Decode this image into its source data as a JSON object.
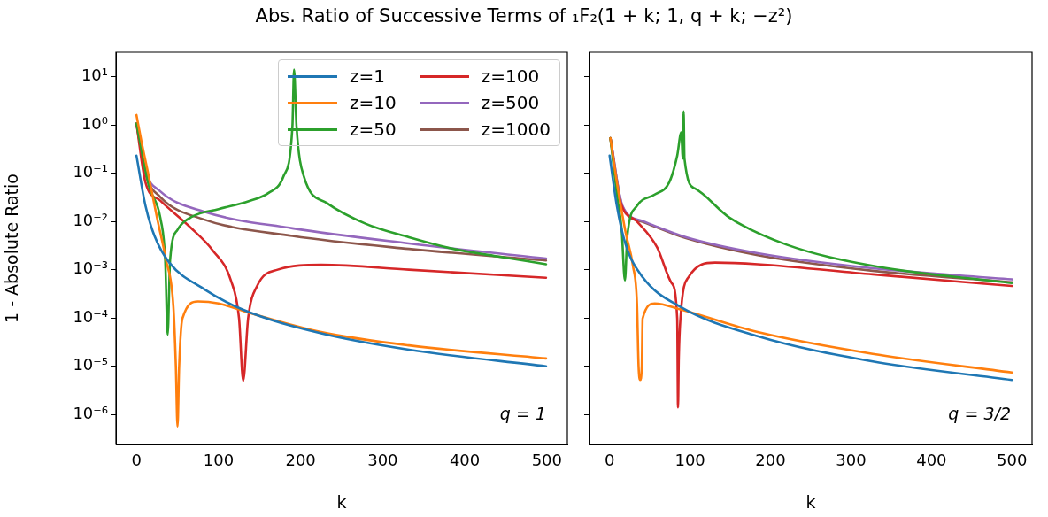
{
  "chart_data": [
    {
      "type": "line",
      "title": "Abs. Ratio of Successive Terms of ₁F₂(1 + k; 1, q + k; −z²)",
      "xlabel": "k",
      "ylabel": "1 - Absolute Ratio",
      "annotations": [
        "q = 1"
      ],
      "log": "y",
      "legend": "top right",
      "xlim": [
        -25,
        525
      ],
      "xticks": [
        0,
        100,
        200,
        300,
        400,
        500
      ],
      "ylim": [
        2.4e-07,
        32
      ],
      "yticks": [
        {
          "value": 1e-06,
          "label": "10⁻⁶"
        },
        {
          "value": 1e-05,
          "label": "10⁻⁵"
        },
        {
          "value": 0.0001,
          "label": "10⁻⁴"
        },
        {
          "value": 0.001,
          "label": "10⁻³"
        },
        {
          "value": 0.01,
          "label": "10⁻²"
        },
        {
          "value": 0.1,
          "label": "10⁻¹"
        },
        {
          "value": 1,
          "label": "10⁰"
        },
        {
          "value": 10,
          "label": "10¹"
        }
      ],
      "series": [
        {
          "name": "z=1",
          "color": "#1f77b4",
          "x": [
            0,
            11,
            22,
            40,
            82,
            129,
            225,
            332,
            499
          ],
          "values": [
            0.23,
            0.021,
            0.005,
            0.0014,
            0.0004,
            0.00015,
            4.8e-05,
            2.2e-05,
            1e-05
          ]
        },
        {
          "name": "z=10",
          "color": "#ff7f0e",
          "x": [
            0,
            6,
            15,
            25,
            36,
            45,
            48,
            50,
            52,
            56,
            75,
            100,
            136,
            225,
            332,
            499
          ],
          "values": [
            1.6,
            0.46,
            0.085,
            0.012,
            0.0016,
            0.00017,
            1e-05,
            5.6e-07,
            1e-05,
            9.8e-05,
            0.00022,
            0.0002,
            0.00013,
            5.1e-05,
            2.7e-05,
            1.45e-05
          ]
        },
        {
          "name": "z=50",
          "color": "#2ca02c",
          "x": [
            0,
            15,
            29,
            35,
            38,
            41,
            50,
            68,
            100,
            136,
            161,
            179,
            190,
            192,
            195,
            204,
            232,
            279,
            332,
            386,
            439,
            499
          ],
          "values": [
            1.07,
            0.055,
            0.012,
            0.0016,
            4.5e-05,
            0.0016,
            0.0067,
            0.0126,
            0.018,
            0.026,
            0.039,
            0.085,
            0.93,
            14,
            0.93,
            0.085,
            0.024,
            0.009,
            0.0047,
            0.0027,
            0.0019,
            0.0013
          ]
        },
        {
          "name": "z=100",
          "color": "#d62728",
          "x": [
            0,
            11,
            29,
            65,
            93,
            115,
            125,
            130,
            136,
            147,
            172,
            225,
            332,
            499
          ],
          "values": [
            1.07,
            0.064,
            0.027,
            0.0077,
            0.0025,
            0.0006,
            9.7e-05,
            5e-06,
            9.7e-05,
            0.00046,
            0.001,
            0.00126,
            0.001,
            0.00068
          ]
        },
        {
          "name": "z=500",
          "color": "#9467bd",
          "x": [
            0,
            11,
            29,
            82,
            190,
            332,
            499
          ],
          "values": [
            1.07,
            0.11,
            0.042,
            0.016,
            0.0072,
            0.0035,
            0.0017
          ]
        },
        {
          "name": "z=1000",
          "color": "#8c564b",
          "x": [
            0,
            11,
            29,
            82,
            190,
            332,
            499
          ],
          "values": [
            1.07,
            0.098,
            0.032,
            0.011,
            0.005,
            0.0027,
            0.00155
          ]
        }
      ]
    },
    {
      "type": "line",
      "xlabel": "k",
      "annotations": [
        "q = 3/2"
      ],
      "log": "y",
      "tick_labels": "x",
      "xlim": [
        -25,
        525
      ],
      "xticks": [
        0,
        100,
        200,
        300,
        400,
        500
      ],
      "ylim": [
        2.4e-07,
        32
      ],
      "yticks": [
        {
          "value": 1e-06,
          "label": null
        },
        {
          "value": 1e-05,
          "label": null
        },
        {
          "value": 0.0001,
          "label": null
        },
        {
          "value": 0.001,
          "label": null
        },
        {
          "value": 0.01,
          "label": null
        },
        {
          "value": 0.1,
          "label": null
        },
        {
          "value": 1,
          "label": null
        },
        {
          "value": 10,
          "label": null
        }
      ],
      "series": [
        {
          "color": "#1f77b4",
          "x": [
            0,
            9,
            20,
            41,
            88,
            184,
            327,
            500
          ],
          "values": [
            0.23,
            0.021,
            0.0033,
            0.0007,
            0.00017,
            4.2e-05,
            1.26e-05,
            5.2e-06
          ]
        },
        {
          "color": "#ff7f0e",
          "x": [
            1,
            9,
            20,
            29,
            34,
            36,
            38,
            40,
            41,
            56,
            88,
            184,
            327,
            500
          ],
          "values": [
            0.53,
            0.064,
            0.0058,
            0.0012,
            0.0002,
            1e-05,
            5.2e-06,
            1e-05,
            9.7e-05,
            0.0002,
            0.00015,
            5.1e-05,
            1.8e-05,
            7.4e-06
          ]
        },
        {
          "color": "#2ca02c",
          "x": [
            1,
            9,
            15,
            19,
            22,
            34,
            56,
            74,
            84,
            89,
            91,
            92,
            93,
            106,
            149,
            220,
            327,
            500
          ],
          "values": [
            0.53,
            0.036,
            0.0067,
            0.0006,
            0.005,
            0.021,
            0.036,
            0.064,
            0.23,
            0.7,
            0.2,
            1.9,
            0.2,
            0.048,
            0.012,
            0.0033,
            0.0012,
            0.00053
          ]
        },
        {
          "color": "#d62728",
          "x": [
            1,
            13,
            34,
            59,
            77,
            84,
            85,
            86,
            88,
            98,
            131,
            184,
            327,
            500
          ],
          "values": [
            0.53,
            0.027,
            0.01,
            0.0029,
            0.00053,
            9.7e-05,
            1.4e-06,
            1.5e-05,
            9.7e-05,
            0.0007,
            0.0014,
            0.0013,
            0.0008,
            0.00046
          ]
        },
        {
          "color": "#9467bd",
          "x": [
            1,
            16,
            41,
            95,
            184,
            327,
            500
          ],
          "values": [
            0.53,
            0.021,
            0.0102,
            0.0047,
            0.0022,
            0.00107,
            0.00063
          ]
        },
        {
          "color": "#8c564b",
          "x": [
            1,
            16,
            41,
            95,
            184,
            327,
            500
          ],
          "values": [
            0.53,
            0.02,
            0.0098,
            0.0045,
            0.002,
            0.00095,
            0.00055
          ]
        }
      ]
    }
  ]
}
